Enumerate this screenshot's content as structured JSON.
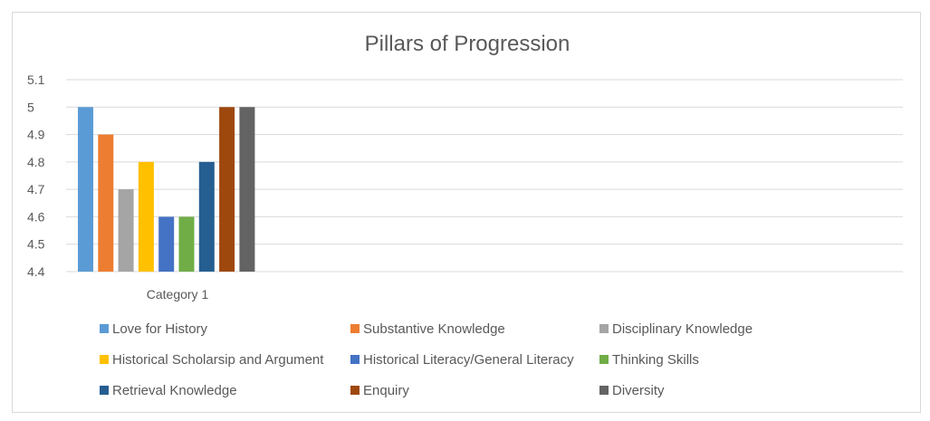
{
  "chart_data": {
    "type": "bar",
    "title": "Pillars of Progression",
    "xlabel": "",
    "ylabel": "",
    "categories": [
      "Category 1"
    ],
    "ylim": [
      4.4,
      5.1
    ],
    "yticks": [
      "4.4",
      "4.5",
      "4.6",
      "4.7",
      "4.8",
      "4.9",
      "5",
      "5.1"
    ],
    "grid": true,
    "legend_position": "bottom",
    "series": [
      {
        "name": "Love for History",
        "values": [
          5.0
        ],
        "color": "#5b9bd5"
      },
      {
        "name": "Substantive Knowledge",
        "values": [
          4.9
        ],
        "color": "#ed7d31"
      },
      {
        "name": "Disciplinary Knowledge",
        "values": [
          4.7
        ],
        "color": "#a5a5a5"
      },
      {
        "name": "Historical Scholarsip and Argument",
        "values": [
          4.8
        ],
        "color": "#ffc000"
      },
      {
        "name": "Historical Literacy/General Literacy",
        "values": [
          4.6
        ],
        "color": "#4472c4"
      },
      {
        "name": "Thinking Skills",
        "values": [
          4.6
        ],
        "color": "#70ad47"
      },
      {
        "name": "Retrieval Knowledge",
        "values": [
          4.8
        ],
        "color": "#255e91"
      },
      {
        "name": "Enquiry",
        "values": [
          5.0
        ],
        "color": "#9e480e"
      },
      {
        "name": "Diversity",
        "values": [
          5.0
        ],
        "color": "#636363"
      }
    ]
  }
}
